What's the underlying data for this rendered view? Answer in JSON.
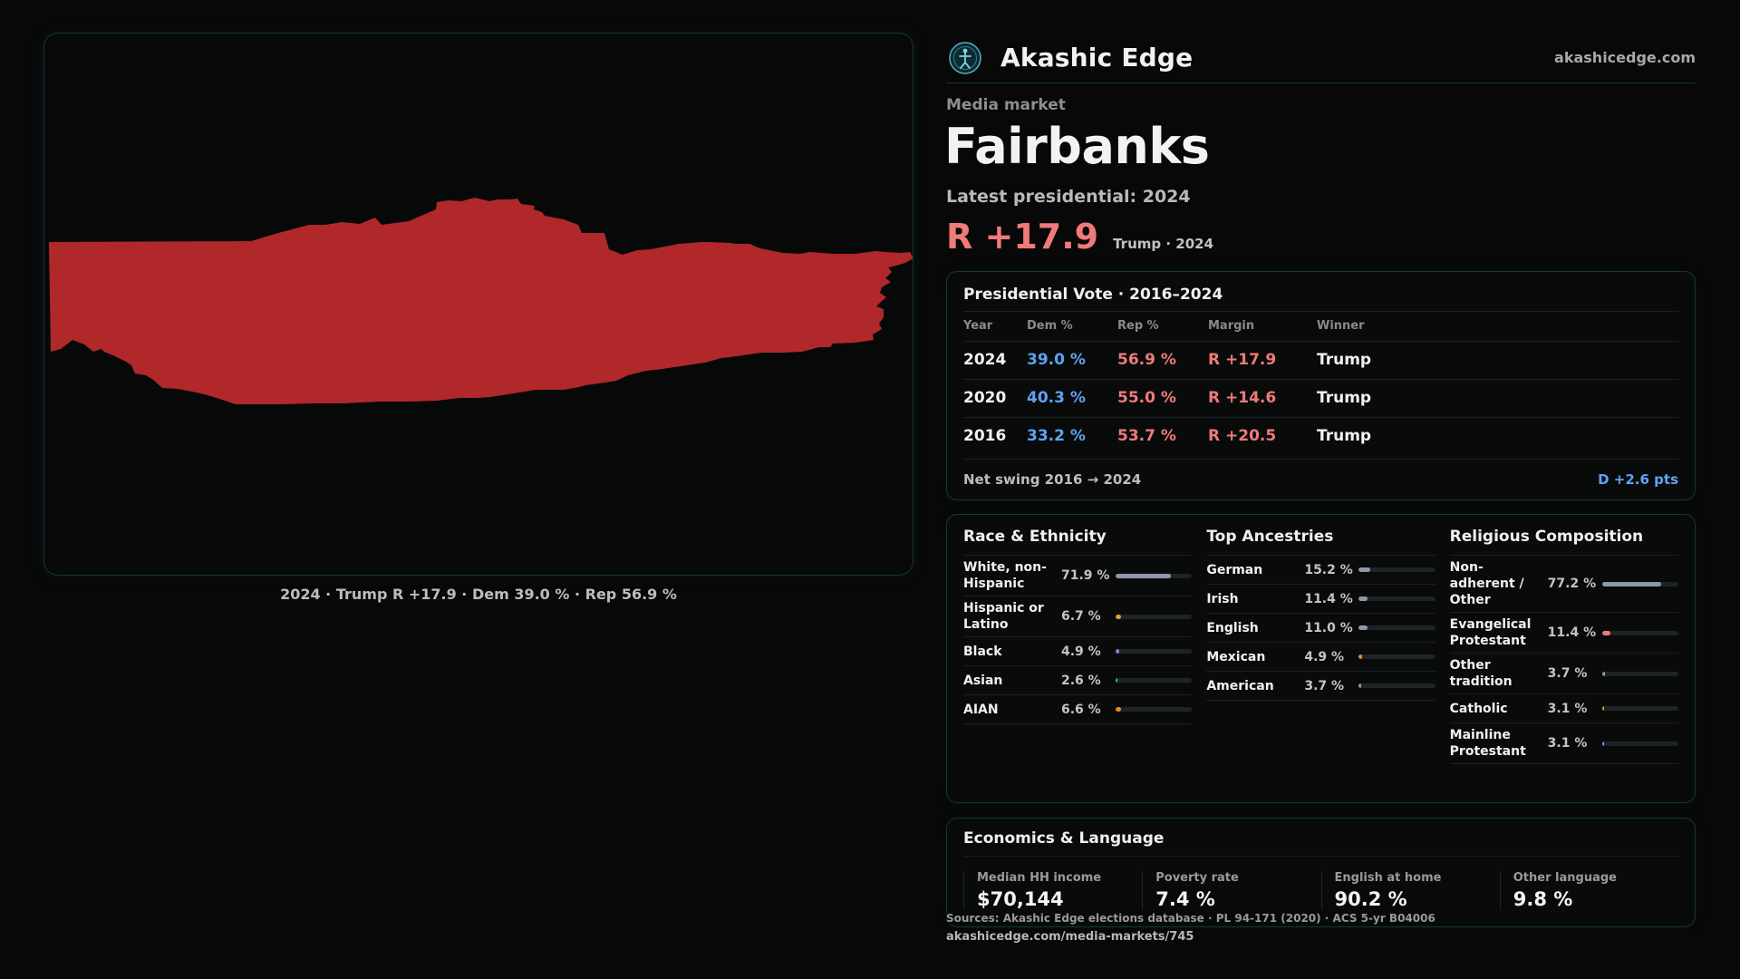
{
  "brand": {
    "name": "Akashic Edge",
    "url": "akashicedge.com"
  },
  "market": {
    "kicker": "Media market",
    "name": "Fairbanks",
    "latest_label": "Latest presidential: 2024",
    "margin": "R +17.9",
    "margin_sub": "Trump · 2024"
  },
  "map": {
    "fill_color": "#b0282a",
    "caption": "2024 · Trump R +17.9 · Dem 39.0 % · Rep 56.9 %"
  },
  "vote": {
    "title": "Presidential Vote · 2016–2024",
    "headers": [
      "Year",
      "Dem %",
      "Rep %",
      "Margin",
      "Winner"
    ],
    "rows": [
      {
        "year": "2024",
        "dem": "39.0 %",
        "rep": "56.9 %",
        "margin": "R +17.9",
        "winner": "Trump"
      },
      {
        "year": "2020",
        "dem": "40.3 %",
        "rep": "55.0 %",
        "margin": "R +14.6",
        "winner": "Trump"
      },
      {
        "year": "2016",
        "dem": "33.2 %",
        "rep": "53.7 %",
        "margin": "R +20.5",
        "winner": "Trump"
      }
    ],
    "swing_label": "Net swing 2016 → 2024",
    "swing_value": "D +2.6 pts",
    "dem_color": "#5ea3f3",
    "rep_color": "#f07a7a"
  },
  "race": {
    "title": "Race & Ethnicity",
    "items": [
      {
        "label": "White, non-Hispanic",
        "pct": "71.9 %",
        "value": 71.9,
        "color": "#8d98a8"
      },
      {
        "label": "Hispanic or Latino",
        "pct": "6.7 %",
        "value": 6.7,
        "color": "#e0a030"
      },
      {
        "label": "Black",
        "pct": "4.9 %",
        "value": 4.9,
        "color": "#8a7af0"
      },
      {
        "label": "Asian",
        "pct": "2.6 %",
        "value": 2.6,
        "color": "#3fc48a"
      },
      {
        "label": "AIAN",
        "pct": "6.6 %",
        "value": 6.6,
        "color": "#e08a30"
      }
    ]
  },
  "ancestry": {
    "title": "Top Ancestries",
    "items": [
      {
        "label": "German",
        "pct": "15.2 %",
        "value": 15.2,
        "color": "#8d98a8"
      },
      {
        "label": "Irish",
        "pct": "11.4 %",
        "value": 11.4,
        "color": "#8d98a8"
      },
      {
        "label": "English",
        "pct": "11.0 %",
        "value": 11.0,
        "color": "#8d98a8"
      },
      {
        "label": "Mexican",
        "pct": "4.9 %",
        "value": 4.9,
        "color": "#e08a30"
      },
      {
        "label": "American",
        "pct": "3.7 %",
        "value": 3.7,
        "color": "#8d98a8"
      }
    ]
  },
  "religion": {
    "title": "Religious Composition",
    "items": [
      {
        "label": "Non-adherent / Other",
        "pct": "77.2 %",
        "value": 77.2,
        "color": "#8d98a8"
      },
      {
        "label": "Evangelical Protestant",
        "pct": "11.4 %",
        "value": 11.4,
        "color": "#f07a7a"
      },
      {
        "label": "Other tradition",
        "pct": "3.7 %",
        "value": 3.7,
        "color": "#8d98a8"
      },
      {
        "label": "Catholic",
        "pct": "3.1 %",
        "value": 3.1,
        "color": "#e0a030"
      },
      {
        "label": "Mainline Protestant",
        "pct": "3.1 %",
        "value": 3.1,
        "color": "#5ea3f3"
      }
    ]
  },
  "econ": {
    "title": "Economics & Language",
    "items": [
      {
        "label": "Median HH income",
        "value": "$70,144"
      },
      {
        "label": "Poverty rate",
        "value": "7.4 %"
      },
      {
        "label": "English at home",
        "value": "90.2 %"
      },
      {
        "label": "Other language",
        "value": "9.8 %"
      }
    ]
  },
  "footer": {
    "sources": "Sources: Akashic Edge elections database · PL 94-171 (2020) · ACS 5-yr B04006",
    "url": "akashicedge.com/media-markets/745"
  }
}
